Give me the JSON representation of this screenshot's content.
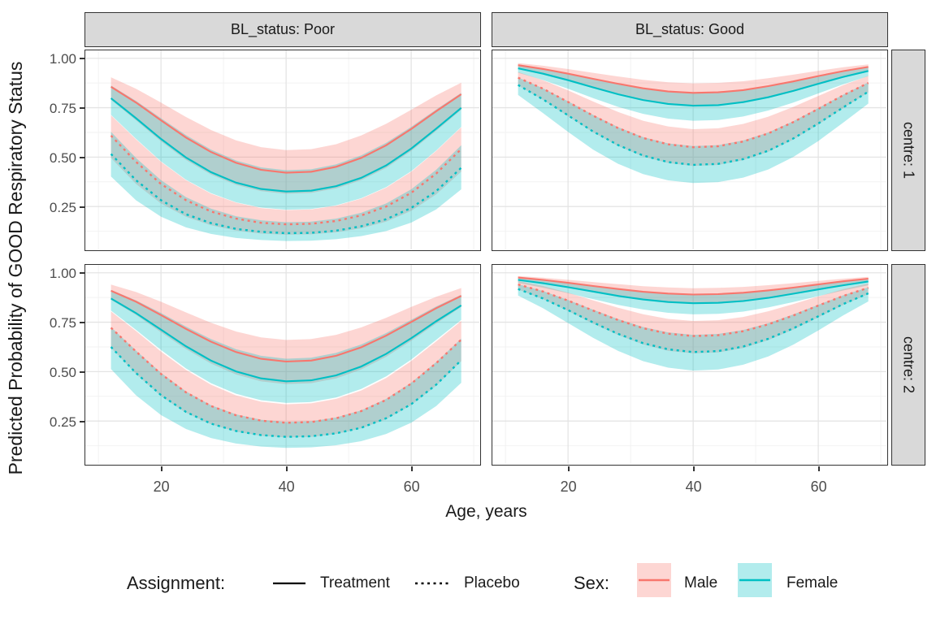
{
  "y_axis": {
    "title": "Predicted Probability of GOOD Respiratory Status",
    "tick_labels": [
      "1.00",
      "0.75",
      "0.50",
      "0.25"
    ],
    "tick_values": [
      1.0,
      0.75,
      0.5,
      0.25
    ],
    "minor_values": [
      0.875,
      0.625,
      0.375,
      0.125
    ],
    "range": [
      0.033,
      1.04
    ]
  },
  "x_axis": {
    "title": "Age, years",
    "tick_labels": [
      "20",
      "40",
      "60"
    ],
    "tick_values": [
      20,
      40,
      60
    ],
    "minor_values": [
      10,
      30,
      50,
      70
    ],
    "range": [
      7.9,
      70.9
    ]
  },
  "facets": {
    "columns": [
      {
        "label": "BL_status: Poor"
      },
      {
        "label": "BL_status: Good"
      }
    ],
    "rows": [
      {
        "label": "centre: 1"
      },
      {
        "label": "centre: 2"
      }
    ]
  },
  "colors": {
    "male": "#F8766D",
    "female": "#00BFC4",
    "ribbon_alpha": 0.3,
    "strip_bg": "#D9D9D9",
    "panel_border": "#333333",
    "grid_major": "#E4E4E4",
    "grid_minor": "#F2F2F2",
    "tick_text": "#4D4D4D",
    "line_black": "#000000"
  },
  "legend": {
    "assignment": {
      "title": "Assignment:",
      "items": [
        {
          "label": "Treatment",
          "linetype": "solid"
        },
        {
          "label": "Placebo",
          "linetype": "dotted"
        }
      ]
    },
    "sex": {
      "title": "Sex:",
      "items": [
        {
          "label": "Male",
          "color": "#F8766D"
        },
        {
          "label": "Female",
          "color": "#00BFC4"
        }
      ]
    }
  },
  "chart_data": {
    "type": "line",
    "title": "",
    "xlabel": "Age, years",
    "ylabel": "Predicted Probability of GOOD Respiratory Status",
    "xlim": [
      7.9,
      70.9
    ],
    "ylim": [
      0.033,
      1.04
    ],
    "grid": true,
    "legend_position": "bottom",
    "x": [
      12,
      16,
      20,
      24,
      28,
      32,
      36,
      40,
      44,
      48,
      52,
      56,
      60,
      64,
      68
    ],
    "panels": [
      {
        "id": "poor_c1",
        "col_label": "BL_status: Poor",
        "row_label": "centre: 1",
        "band_halfwidth_logit": 0.46,
        "series": [
          {
            "name": "Male Treatment",
            "sex": "Male",
            "assignment": "Treatment",
            "linetype": "solid",
            "color_key": "male",
            "values": [
              0.856,
              0.776,
              0.686,
              0.599,
              0.526,
              0.471,
              0.436,
              0.421,
              0.426,
              0.451,
              0.496,
              0.56,
              0.642,
              0.732,
              0.818
            ]
          },
          {
            "name": "Female Treatment",
            "sex": "Female",
            "assignment": "Treatment",
            "linetype": "solid",
            "color_key": "female",
            "values": [
              0.798,
              0.697,
              0.592,
              0.498,
              0.424,
              0.371,
              0.339,
              0.326,
              0.33,
              0.353,
              0.395,
              0.458,
              0.543,
              0.644,
              0.749
            ]
          },
          {
            "name": "Male Placebo",
            "sex": "Male",
            "assignment": "Placebo",
            "linetype": "dotted",
            "color_key": "male",
            "values": [
              0.609,
              0.476,
              0.364,
              0.282,
              0.225,
              0.189,
              0.168,
              0.16,
              0.163,
              0.177,
              0.205,
              0.25,
              0.319,
              0.417,
              0.541
            ]
          },
          {
            "name": "Female Placebo",
            "sex": "Female",
            "assignment": "Placebo",
            "linetype": "dotted",
            "color_key": "female",
            "values": [
              0.516,
              0.383,
              0.282,
              0.211,
              0.166,
              0.137,
              0.122,
              0.115,
              0.117,
              0.128,
              0.15,
              0.186,
              0.243,
              0.328,
              0.446
            ]
          }
        ]
      },
      {
        "id": "good_c1",
        "col_label": "BL_status: Good",
        "row_label": "centre: 1",
        "band_halfwidth_logit": 0.38,
        "series": [
          {
            "name": "Male Treatment",
            "sex": "Male",
            "assignment": "Treatment",
            "linetype": "solid",
            "color_key": "male",
            "values": [
              0.965,
              0.946,
              0.922,
              0.896,
              0.871,
              0.848,
              0.832,
              0.825,
              0.828,
              0.839,
              0.859,
              0.883,
              0.91,
              0.935,
              0.956
            ]
          },
          {
            "name": "Female Treatment",
            "sex": "Female",
            "assignment": "Treatment",
            "linetype": "solid",
            "color_key": "female",
            "values": [
              0.949,
              0.922,
              0.889,
              0.853,
              0.818,
              0.789,
              0.769,
              0.76,
              0.763,
              0.778,
              0.803,
              0.835,
              0.871,
              0.906,
              0.936
            ]
          },
          {
            "name": "Male Placebo",
            "sex": "Male",
            "assignment": "Placebo",
            "linetype": "dotted",
            "color_key": "male",
            "values": [
              0.902,
              0.846,
              0.779,
              0.71,
              0.647,
              0.597,
              0.565,
              0.55,
              0.555,
              0.579,
              0.62,
              0.677,
              0.744,
              0.813,
              0.875
            ]
          },
          {
            "name": "Female Placebo",
            "sex": "Female",
            "assignment": "Placebo",
            "linetype": "dotted",
            "color_key": "female",
            "values": [
              0.865,
              0.792,
              0.711,
              0.63,
              0.561,
              0.508,
              0.475,
              0.461,
              0.466,
              0.49,
              0.532,
              0.594,
              0.67,
              0.752,
              0.831
            ]
          }
        ]
      },
      {
        "id": "poor_c2",
        "col_label": "BL_status: Poor",
        "row_label": "centre: 2",
        "band_halfwidth_logit": 0.46,
        "series": [
          {
            "name": "Male Treatment",
            "sex": "Male",
            "assignment": "Treatment",
            "linetype": "solid",
            "color_key": "male",
            "values": [
              0.909,
              0.854,
              0.786,
              0.716,
              0.651,
              0.599,
              0.565,
              0.551,
              0.556,
              0.58,
              0.623,
              0.682,
              0.751,
              0.821,
              0.883
            ]
          },
          {
            "name": "Female Treatment",
            "sex": "Female",
            "assignment": "Treatment",
            "linetype": "solid",
            "color_key": "female",
            "values": [
              0.87,
              0.796,
              0.712,
              0.628,
              0.556,
              0.501,
              0.466,
              0.451,
              0.456,
              0.481,
              0.526,
              0.59,
              0.669,
              0.755,
              0.835
            ]
          },
          {
            "name": "Male Placebo",
            "sex": "Male",
            "assignment": "Placebo",
            "linetype": "dotted",
            "color_key": "male",
            "values": [
              0.722,
              0.602,
              0.488,
              0.395,
              0.326,
              0.279,
              0.252,
              0.241,
              0.245,
              0.264,
              0.3,
              0.357,
              0.439,
              0.543,
              0.662
            ]
          },
          {
            "name": "Female Placebo",
            "sex": "Female",
            "assignment": "Placebo",
            "linetype": "dotted",
            "color_key": "female",
            "values": [
              0.625,
              0.493,
              0.381,
              0.296,
              0.237,
              0.2,
              0.179,
              0.17,
              0.173,
              0.188,
              0.216,
              0.264,
              0.335,
              0.434,
              0.558
            ]
          }
        ]
      },
      {
        "id": "good_c2",
        "col_label": "BL_status: Good",
        "row_label": "centre: 2",
        "band_halfwidth_logit": 0.38,
        "series": [
          {
            "name": "Male Treatment",
            "sex": "Male",
            "assignment": "Treatment",
            "linetype": "solid",
            "color_key": "male",
            "values": [
              0.976,
              0.964,
              0.949,
              0.933,
              0.918,
              0.904,
              0.895,
              0.89,
              0.892,
              0.899,
              0.911,
              0.925,
              0.941,
              0.957,
              0.97
            ]
          },
          {
            "name": "Female Treatment",
            "sex": "Female",
            "assignment": "Treatment",
            "linetype": "solid",
            "color_key": "female",
            "values": [
              0.964,
              0.947,
              0.927,
              0.905,
              0.883,
              0.865,
              0.852,
              0.846,
              0.848,
              0.857,
              0.873,
              0.894,
              0.916,
              0.937,
              0.956
            ]
          },
          {
            "name": "Male Placebo",
            "sex": "Male",
            "assignment": "Placebo",
            "linetype": "dotted",
            "color_key": "male",
            "values": [
              0.941,
              0.905,
              0.859,
              0.809,
              0.761,
              0.72,
              0.692,
              0.68,
              0.684,
              0.704,
              0.739,
              0.784,
              0.834,
              0.883,
              0.924
            ]
          },
          {
            "name": "Female Placebo",
            "sex": "Female",
            "assignment": "Placebo",
            "linetype": "dotted",
            "color_key": "female",
            "values": [
              0.918,
              0.87,
              0.811,
              0.749,
              0.691,
              0.644,
              0.613,
              0.599,
              0.604,
              0.627,
              0.666,
              0.719,
              0.78,
              0.842,
              0.896
            ]
          }
        ]
      }
    ]
  }
}
